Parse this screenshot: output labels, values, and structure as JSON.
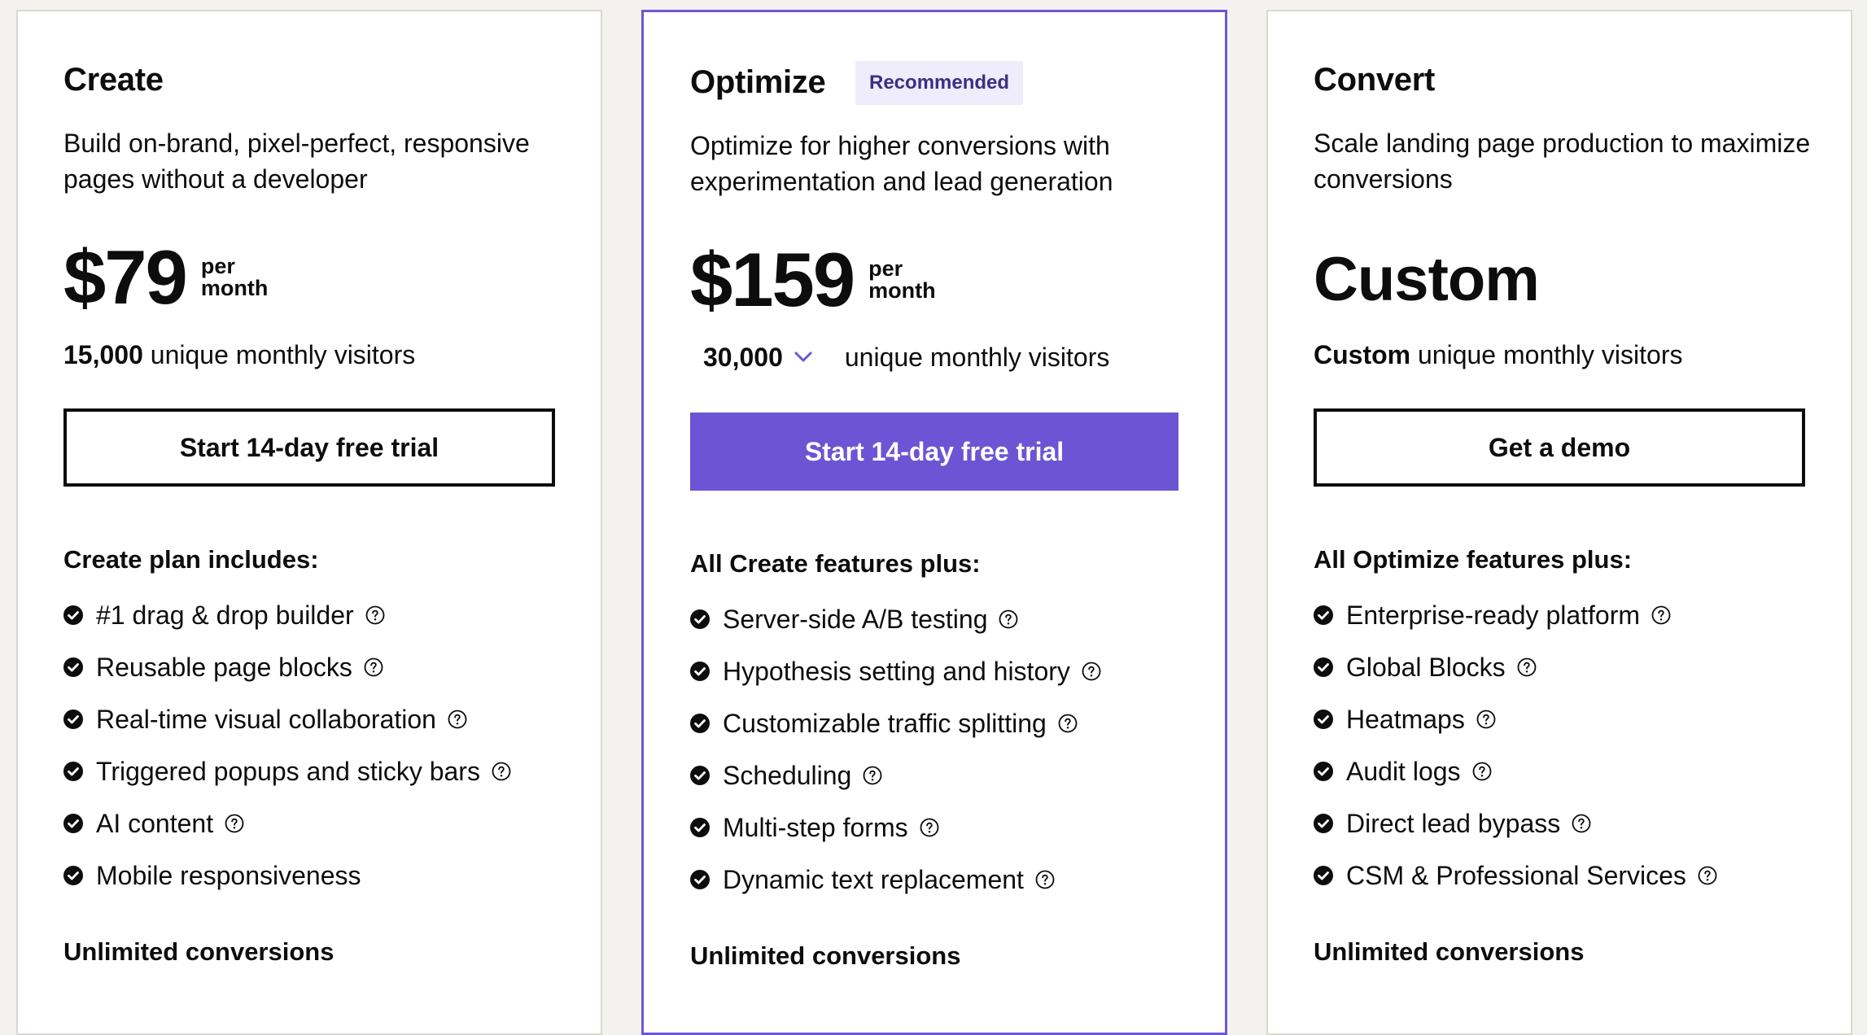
{
  "colors": {
    "accent": "#6b55d4",
    "featured_border": "#6e57d6",
    "badge_bg": "#efecfb",
    "badge_text": "#3c2f85",
    "text": "#0d0d0d",
    "page_bg": "#f3f2ee"
  },
  "plans": [
    {
      "name": "Create",
      "description": "Build on-brand, pixel-perfect, responsive pages without a developer",
      "price": "$79",
      "per_line1": "per",
      "per_line2": "month",
      "visitors_count": "15,000",
      "visitors_label": "unique monthly visitors",
      "cta": "Start 14-day free trial",
      "features_heading": "Create plan includes:",
      "features": [
        {
          "label": "#1 drag & drop builder",
          "help_icon": "question-circle-icon"
        },
        {
          "label": "Reusable page blocks",
          "help_icon": "question-circle-icon"
        },
        {
          "label": "Real-time visual collaboration",
          "help_icon": "question-circle-icon"
        },
        {
          "label": "Triggered popups and sticky bars",
          "help_icon": "question-circle-icon"
        },
        {
          "label": "AI content",
          "help_icon": "question-circle-icon"
        },
        {
          "label": "Mobile responsiveness"
        }
      ],
      "footer": "Unlimited conversions"
    },
    {
      "name": "Optimize",
      "badge": "Recommended",
      "description": "Optimize for higher conversions with experimentation and lead generation",
      "price": "$159",
      "per_line1": "per",
      "per_line2": "month",
      "visitors_selected": "30,000",
      "visitors_label": "unique monthly visitors",
      "cta": "Start 14-day free trial",
      "features_heading": "All Create features plus:",
      "features": [
        {
          "label": "Server-side A/B testing",
          "help_icon": "question-circle-icon"
        },
        {
          "label": "Hypothesis setting and history",
          "help_icon": "question-circle-icon"
        },
        {
          "label": "Customizable traffic splitting",
          "help_icon": "question-circle-icon"
        },
        {
          "label": "Scheduling",
          "help_icon": "question-circle-icon"
        },
        {
          "label": "Multi-step forms",
          "help_icon": "question-circle-icon"
        },
        {
          "label": "Dynamic text replacement",
          "help_icon": "question-circle-icon"
        }
      ],
      "footer": "Unlimited conversions"
    },
    {
      "name": "Convert",
      "description": "Scale landing page production to maximize conversions",
      "price": "Custom",
      "visitors_count": "Custom",
      "visitors_label": "unique monthly visitors",
      "cta": "Get a demo",
      "features_heading": "All Optimize features plus:",
      "features": [
        {
          "label": "Enterprise-ready platform",
          "help_icon": "question-circle-icon"
        },
        {
          "label": "Global Blocks",
          "help_icon": "question-circle-icon"
        },
        {
          "label": "Heatmaps",
          "help_icon": "question-circle-icon"
        },
        {
          "label": "Audit logs",
          "help_icon": "question-circle-icon"
        },
        {
          "label": "Direct lead bypass",
          "help_icon": "question-circle-icon"
        },
        {
          "label": "CSM & Professional Services",
          "help_icon": "question-circle-icon"
        }
      ],
      "footer": "Unlimited conversions"
    }
  ]
}
